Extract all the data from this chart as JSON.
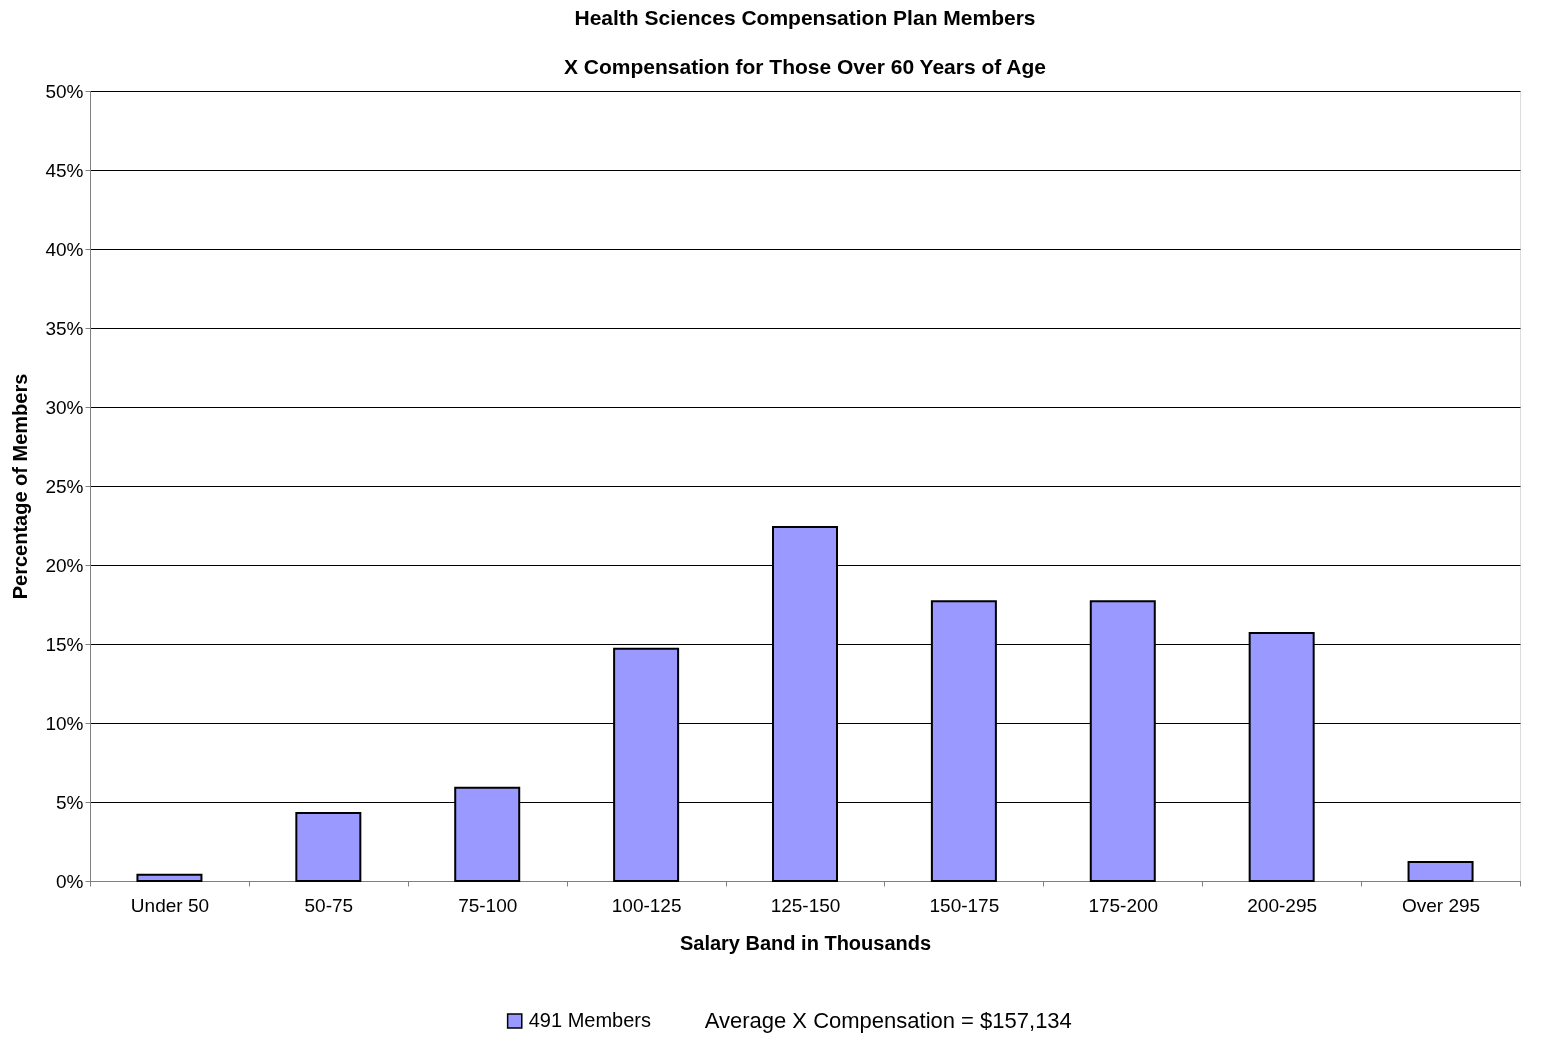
{
  "chart_data": {
    "type": "bar",
    "title": "Health Sciences Compensation Plan Members",
    "subtitle": "X Compensation for Those Over 60 Years of Age",
    "xlabel": "Salary Band in Thousands",
    "ylabel": "Percentage of Members",
    "categories": [
      "Under 50",
      "50-75",
      "75-100",
      "100-125",
      "125-150",
      "150-175",
      "175-200",
      "200-295",
      "Over 295"
    ],
    "series": [
      {
        "name": "491 Members",
        "color": "#9999ff",
        "values": [
          0.4,
          4.3,
          5.9,
          14.7,
          22.4,
          17.7,
          17.7,
          15.7,
          1.2
        ]
      }
    ],
    "ylim": [
      0,
      50
    ],
    "yticks": [
      {
        "value": 0,
        "label": "0%"
      },
      {
        "value": 5,
        "label": "5%"
      },
      {
        "value": 10,
        "label": "10%"
      },
      {
        "value": 15,
        "label": "15%"
      },
      {
        "value": 20,
        "label": "20%"
      },
      {
        "value": 25,
        "label": "25%"
      },
      {
        "value": 30,
        "label": "30%"
      },
      {
        "value": 35,
        "label": "35%"
      },
      {
        "value": 40,
        "label": "40%"
      },
      {
        "value": 45,
        "label": "45%"
      },
      {
        "value": 50,
        "label": "50%"
      }
    ],
    "grid": "y",
    "legend": "bottom",
    "annotations": [
      "Average X Compensation = $157,134"
    ]
  }
}
